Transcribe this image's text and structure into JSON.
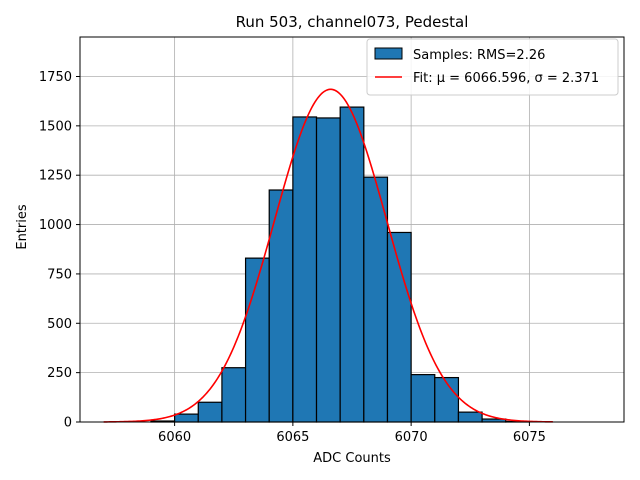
{
  "chart_data": {
    "type": "bar",
    "title": "Run 503, channel073, Pedestal",
    "xlabel": "ADC Counts",
    "ylabel": "Entries",
    "xlim": [
      6056.0,
      6079.0
    ],
    "ylim": [
      0,
      1950
    ],
    "xticks": [
      6060,
      6065,
      6070,
      6075
    ],
    "yticks": [
      0,
      250,
      500,
      750,
      1000,
      1250,
      1500,
      1750
    ],
    "grid": true,
    "legend_position": "top-right",
    "colors": {
      "bars": "#1f77b4",
      "fit": "#ff0000"
    },
    "series": [
      {
        "name": "Samples: RMS=2.26",
        "kind": "histogram",
        "bin_width": 1,
        "bins": [
          {
            "x0": 6059,
            "value": 5
          },
          {
            "x0": 6060,
            "value": 40
          },
          {
            "x0": 6061,
            "value": 100
          },
          {
            "x0": 6062,
            "value": 275
          },
          {
            "x0": 6063,
            "value": 830
          },
          {
            "x0": 6064,
            "value": 1175
          },
          {
            "x0": 6065,
            "value": 1545
          },
          {
            "x0": 6066,
            "value": 1540
          },
          {
            "x0": 6067,
            "value": 1595
          },
          {
            "x0": 6068,
            "value": 1240
          },
          {
            "x0": 6069,
            "value": 960
          },
          {
            "x0": 6070,
            "value": 240
          },
          {
            "x0": 6071,
            "value": 225
          },
          {
            "x0": 6072,
            "value": 50
          },
          {
            "x0": 6073,
            "value": 15
          },
          {
            "x0": 6074,
            "value": 3
          }
        ]
      },
      {
        "name": "Fit: μ = 6066.596, σ = 2.371",
        "kind": "gaussian",
        "mu": 6066.596,
        "sigma": 2.371,
        "amplitude": 1685,
        "x_range": [
          6057,
          6076
        ]
      }
    ]
  }
}
